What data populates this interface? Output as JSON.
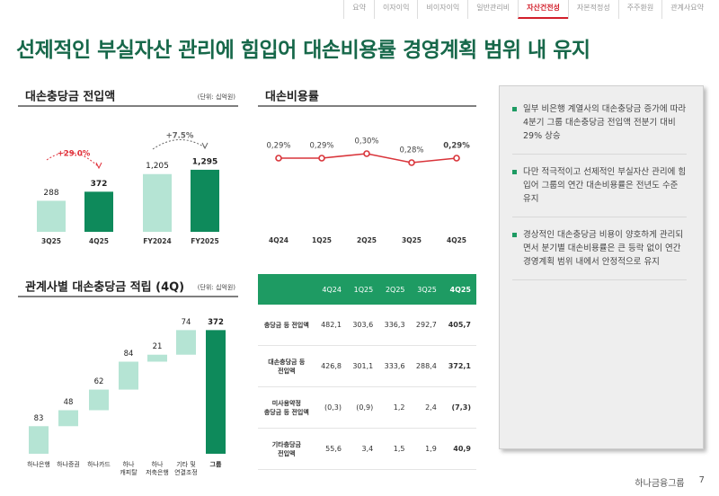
{
  "tabs": [
    "요약",
    "이자이익",
    "비이자이익",
    "일반관리비",
    "자산건전성",
    "자본적정성",
    "주주환원",
    "관계사요약"
  ],
  "active_tab": 4,
  "title": "선제적인 부실자산 관리에 힘입어 대손비용률 경영계획 범위 내 유지",
  "chart_data": [
    {
      "type": "bar",
      "title": "대손충당금 전입액",
      "unit": "(단위: 십억원)",
      "categories": [
        "3Q25",
        "4Q25"
      ],
      "values": [
        288,
        372
      ],
      "value_labels": [
        "288",
        "372"
      ],
      "colors": [
        "#b5e4d4",
        "#0e8a5b"
      ],
      "ylim": [
        0,
        600
      ],
      "annotation": "+29.0%",
      "annotation_color": "#e0303a"
    },
    {
      "type": "bar",
      "categories": [
        "FY2024",
        "FY2025"
      ],
      "values": [
        1205,
        1295
      ],
      "value_labels": [
        "1,205",
        "1,295"
      ],
      "colors": [
        "#b5e4d4",
        "#0e8a5b"
      ],
      "ylim": [
        0,
        1500
      ],
      "annotation": "+7.5%",
      "annotation_color": "#666666"
    },
    {
      "type": "line",
      "title": "대손비용률",
      "categories": [
        "4Q24",
        "1Q25",
        "2Q25",
        "3Q25",
        "4Q25"
      ],
      "values": [
        0.29,
        0.29,
        0.3,
        0.28,
        0.29
      ],
      "value_labels": [
        "0,29%",
        "0,29%",
        "0,30%",
        "0,28%",
        "0,29%"
      ],
      "color": "#d9343a",
      "ylim": [
        0.2,
        0.4
      ]
    },
    {
      "type": "waterfall",
      "title": "관계사별 대손충당금 적립 (4Q)",
      "unit": "(단위: 십억원)",
      "categories": [
        "하나은행",
        "하나증권",
        "하나카드",
        "하나\n캐피탈",
        "하나\n저축은행",
        "기타 및\n연결조정",
        "그룹"
      ],
      "values": [
        83,
        48,
        62,
        84,
        21,
        74,
        372
      ],
      "color": "#b5e4d4",
      "total_color": "#0e8a5b",
      "ylim": [
        0,
        400
      ]
    }
  ],
  "table": {
    "header": [
      "4Q24",
      "1Q25",
      "2Q25",
      "3Q25",
      "4Q25"
    ],
    "rows": [
      {
        "label": "충당금 등 전입액",
        "cells": [
          "482,1",
          "303,6",
          "336,3",
          "292,7",
          "405,7"
        ]
      },
      {
        "label": "대손충당금 등\n전입액",
        "cells": [
          "426,8",
          "301,1",
          "333,6",
          "288,4",
          "372,1"
        ]
      },
      {
        "label": "미사용약정\n충당금 등 전입액",
        "cells": [
          "(0,3)",
          "(0,9)",
          "1,2",
          "2,4",
          "(7,3)"
        ]
      },
      {
        "label": "기타충당금\n전입액",
        "cells": [
          "55,6",
          "3,4",
          "1,5",
          "1,9",
          "40,9"
        ]
      }
    ]
  },
  "notes": [
    "일부 비은행 계열사의 대손충당금 증가에 따라 4분기 그룹 대손충당금 전입액 전분기 대비 29% 상승",
    "다만 적극적이고 선제적인 부실자산 관리에 힘입어 그룹의 연간 대손비용률은 전년도 수준 유지",
    "경상적인 대손충당금 비용이 양호하게 관리되면서 분기별 대손비용률은 큰 등락 없이 연간 경영계획 범위 내에서 안정적으로 유지"
  ],
  "footer": {
    "brand": "하나금융그룹",
    "page": "7"
  }
}
